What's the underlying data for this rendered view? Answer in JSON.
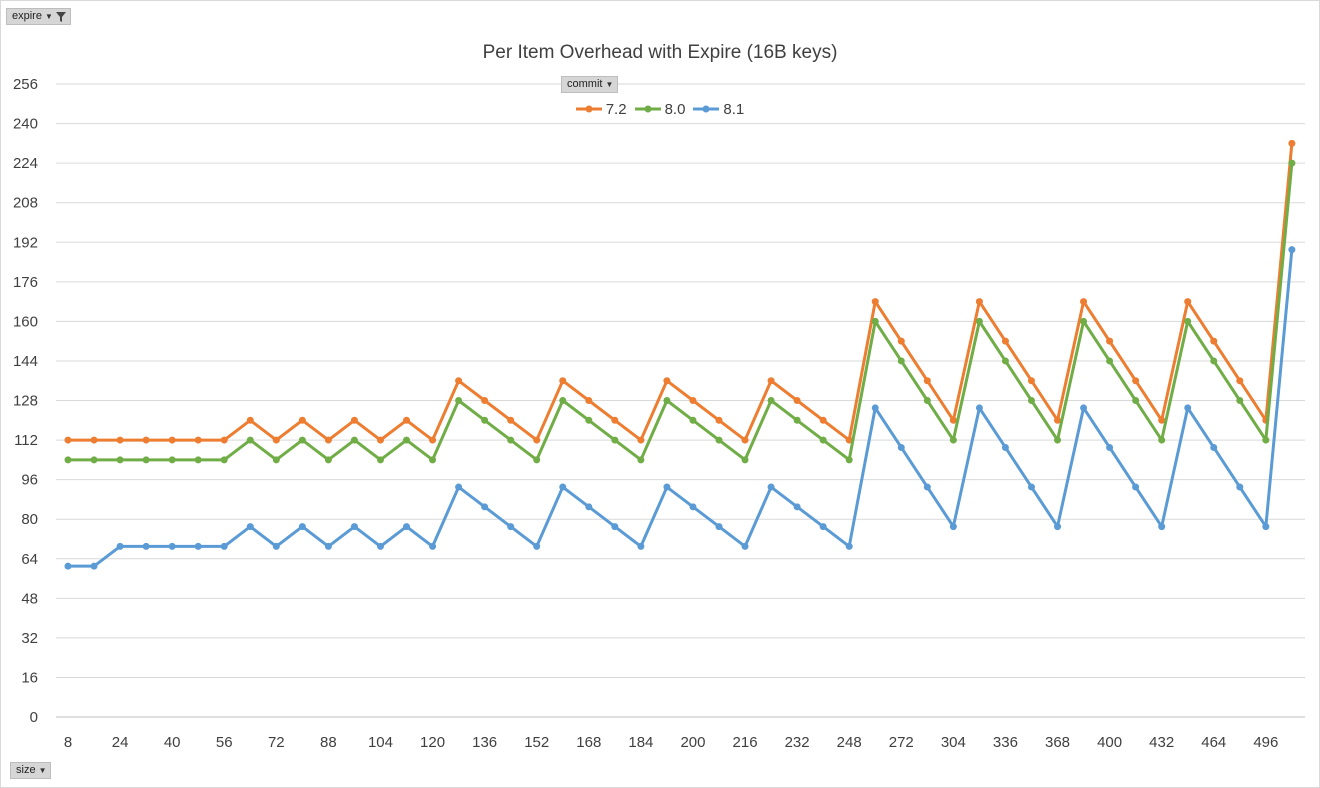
{
  "filters": {
    "expire": {
      "label": "expire"
    },
    "commit": {
      "label": "commit"
    },
    "size": {
      "label": "size"
    }
  },
  "chart_data": {
    "type": "line",
    "title": "Per Item Overhead with Expire (16B keys)",
    "xlabel": "",
    "ylabel": "",
    "ylim": [
      0,
      256
    ],
    "yticks": [
      0,
      16,
      32,
      48,
      64,
      80,
      96,
      112,
      128,
      144,
      160,
      176,
      192,
      208,
      224,
      240,
      256
    ],
    "x": [
      8,
      16,
      24,
      32,
      40,
      48,
      56,
      64,
      72,
      80,
      88,
      96,
      104,
      112,
      120,
      128,
      136,
      144,
      152,
      160,
      168,
      176,
      184,
      192,
      200,
      208,
      216,
      224,
      232,
      240,
      248,
      256,
      272,
      288,
      304,
      320,
      336,
      352,
      368,
      384,
      400,
      416,
      432,
      448,
      464,
      480,
      496,
      512
    ],
    "xticklabels": [
      "8",
      "24",
      "40",
      "56",
      "72",
      "88",
      "104",
      "120",
      "136",
      "152",
      "168",
      "184",
      "200",
      "216",
      "232",
      "248",
      "272",
      "304",
      "336",
      "368",
      "400",
      "432",
      "464",
      "496"
    ],
    "grid": true,
    "legend_position": "top-center",
    "series": [
      {
        "name": "7.2",
        "color": "#ed7d31",
        "values": [
          112,
          112,
          112,
          112,
          112,
          112,
          112,
          120,
          112,
          120,
          112,
          120,
          112,
          120,
          112,
          136,
          128,
          120,
          112,
          136,
          128,
          120,
          112,
          136,
          128,
          120,
          112,
          136,
          128,
          120,
          112,
          168,
          152,
          136,
          120,
          168,
          152,
          136,
          120,
          168,
          152,
          136,
          120,
          168,
          152,
          136,
          120,
          232
        ]
      },
      {
        "name": "8.0",
        "color": "#70ad47",
        "values": [
          104,
          104,
          104,
          104,
          104,
          104,
          104,
          112,
          104,
          112,
          104,
          112,
          104,
          112,
          104,
          128,
          120,
          112,
          104,
          128,
          120,
          112,
          104,
          128,
          120,
          112,
          104,
          128,
          120,
          112,
          104,
          160,
          144,
          128,
          112,
          160,
          144,
          128,
          112,
          160,
          144,
          128,
          112,
          160,
          144,
          128,
          112,
          224
        ]
      },
      {
        "name": "8.1",
        "color": "#5b9bd5",
        "values": [
          61,
          61,
          69,
          69,
          69,
          69,
          69,
          77,
          69,
          77,
          69,
          77,
          69,
          77,
          69,
          93,
          85,
          77,
          69,
          93,
          85,
          77,
          69,
          93,
          85,
          77,
          69,
          93,
          85,
          77,
          69,
          125,
          109,
          93,
          77,
          125,
          109,
          93,
          77,
          125,
          109,
          93,
          77,
          125,
          109,
          93,
          77,
          189
        ]
      }
    ]
  }
}
